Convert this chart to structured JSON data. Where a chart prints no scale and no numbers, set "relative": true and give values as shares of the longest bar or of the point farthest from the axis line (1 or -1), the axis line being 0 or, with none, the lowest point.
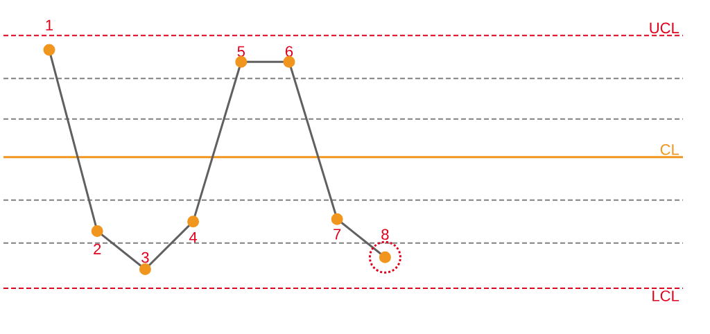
{
  "chart_data": {
    "type": "line",
    "relative": true,
    "marker": "circle",
    "categories": [
      "1",
      "2",
      "3",
      "4",
      "5",
      "6",
      "7",
      "8"
    ],
    "series": [
      {
        "color": "#606060",
        "values": [
          1,
          0.24,
          0.08,
          0.28,
          0.95,
          0.95,
          0.29,
          0.13
        ]
      }
    ],
    "ref_lines": [
      {
        "axis": "y",
        "value": 1.06,
        "label": "UCL",
        "color": "#e0001b",
        "line_style": "dashed"
      },
      {
        "axis": "y",
        "value": 0.88,
        "color": "#808080",
        "line_style": "dashed"
      },
      {
        "axis": "y",
        "value": 0.71,
        "color": "#808080",
        "line_style": "dashed"
      },
      {
        "axis": "y",
        "value": 0.55,
        "label": "CL",
        "color": "#f0961e",
        "line_style": "solid"
      },
      {
        "axis": "y",
        "value": 0.37,
        "color": "#808080",
        "line_style": "dashed"
      },
      {
        "axis": "y",
        "value": 0.19,
        "color": "#808080",
        "line_style": "dashed"
      },
      {
        "axis": "y",
        "value": 0,
        "label": "LCL",
        "color": "#e0001b",
        "line_style": "dashed"
      }
    ]
  }
}
